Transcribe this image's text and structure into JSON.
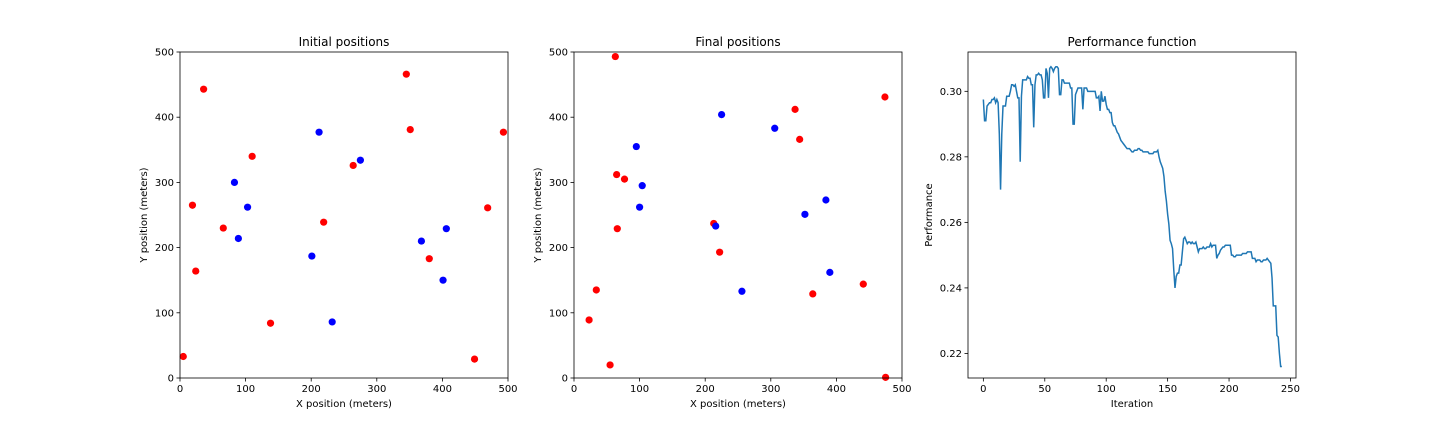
{
  "chart_data": [
    {
      "type": "scatter",
      "title": "Initial positions",
      "xlabel": "X position (meters)",
      "ylabel": "Y position (meters)",
      "xlim": [
        0,
        500
      ],
      "ylim": [
        0,
        500
      ],
      "xticks": [
        0,
        100,
        200,
        300,
        400,
        500
      ],
      "yticks": [
        0,
        100,
        200,
        300,
        400,
        500
      ],
      "grid": false,
      "series": [
        {
          "color": "#ff0000",
          "points": [
            [
              36,
              443
            ],
            [
              345,
              466
            ],
            [
              351,
              381
            ],
            [
              493,
              377
            ],
            [
              110,
              340
            ],
            [
              264,
              326
            ],
            [
              19,
              265
            ],
            [
              66,
              230
            ],
            [
              219,
              239
            ],
            [
              24,
              164
            ],
            [
              380,
              183
            ],
            [
              469,
              261
            ],
            [
              138,
              84
            ],
            [
              5,
              33
            ],
            [
              449,
              29
            ]
          ]
        },
        {
          "color": "#0000ff",
          "points": [
            [
              212,
              377
            ],
            [
              275,
              334
            ],
            [
              83,
              300
            ],
            [
              103,
              262
            ],
            [
              89,
              214
            ],
            [
              201,
              187
            ],
            [
              368,
              210
            ],
            [
              406,
              229
            ],
            [
              401,
              150
            ],
            [
              232,
              86
            ]
          ]
        }
      ]
    },
    {
      "type": "scatter",
      "title": "Final positions",
      "xlabel": "X position (meters)",
      "ylabel": "Y position (meters)",
      "xlim": [
        0,
        500
      ],
      "ylim": [
        0,
        500
      ],
      "xticks": [
        0,
        100,
        200,
        300,
        400,
        500
      ],
      "yticks": [
        0,
        100,
        200,
        300,
        400,
        500
      ],
      "grid": false,
      "series": [
        {
          "color": "#ff0000",
          "points": [
            [
              63,
              493
            ],
            [
              337,
              412
            ],
            [
              474,
              431
            ],
            [
              344,
              366
            ],
            [
              65,
              312
            ],
            [
              77,
              305
            ],
            [
              66,
              229
            ],
            [
              213,
              237
            ],
            [
              222,
              193
            ],
            [
              34,
              135
            ],
            [
              23,
              89
            ],
            [
              364,
              129
            ],
            [
              441,
              144
            ],
            [
              55,
              20
            ],
            [
              475,
              1
            ]
          ]
        },
        {
          "color": "#0000ff",
          "points": [
            [
              225,
              404
            ],
            [
              306,
              383
            ],
            [
              95,
              355
            ],
            [
              104,
              295
            ],
            [
              100,
              262
            ],
            [
              216,
              233
            ],
            [
              352,
              251
            ],
            [
              384,
              273
            ],
            [
              390,
              162
            ],
            [
              256,
              133
            ]
          ]
        }
      ]
    },
    {
      "type": "line",
      "title": "Performance function",
      "xlabel": "Iteration",
      "ylabel": "Performance",
      "xlim": [
        -12.5,
        254.5
      ],
      "ylim": [
        0.2125,
        0.312
      ],
      "xticks": [
        0,
        50,
        100,
        150,
        200,
        250
      ],
      "yticks": [
        0.22,
        0.24,
        0.26,
        0.28,
        0.3
      ],
      "grid": false,
      "series": [
        {
          "color": "#1f77b4",
          "x": [
            0,
            1,
            2,
            3,
            4,
            5,
            6,
            7,
            8,
            9,
            10,
            11,
            12,
            13,
            14,
            15,
            16,
            17,
            18,
            19,
            20,
            21,
            22,
            23,
            24,
            25,
            26,
            27,
            28,
            29,
            30,
            31,
            32,
            33,
            34,
            35,
            36,
            37,
            38,
            39,
            40,
            41,
            42,
            43,
            44,
            45,
            46,
            47,
            48,
            49,
            50,
            51,
            52,
            53,
            54,
            55,
            56,
            57,
            58,
            59,
            60,
            61,
            62,
            63,
            64,
            65,
            66,
            67,
            68,
            69,
            70,
            71,
            72,
            73,
            74,
            75,
            76,
            77,
            78,
            79,
            80,
            81,
            82,
            83,
            84,
            85,
            86,
            87,
            88,
            89,
            90,
            91,
            92,
            93,
            94,
            95,
            96,
            97,
            98,
            99,
            100,
            101,
            102,
            103,
            104,
            105,
            106,
            107,
            108,
            109,
            110,
            111,
            112,
            113,
            114,
            115,
            116,
            117,
            118,
            119,
            120,
            121,
            122,
            123,
            124,
            125,
            126,
            127,
            128,
            129,
            130,
            131,
            132,
            133,
            134,
            135,
            136,
            137,
            138,
            139,
            140,
            141,
            142,
            143,
            144,
            145,
            146,
            147,
            148,
            149,
            150,
            151,
            152,
            153,
            154,
            155,
            156,
            157,
            158,
            159,
            160,
            161,
            162,
            163,
            164,
            165,
            166,
            167,
            168,
            169,
            170,
            171,
            172,
            173,
            174,
            175,
            176,
            177,
            178,
            179,
            180,
            181,
            182,
            183,
            184,
            185,
            186,
            187,
            188,
            189,
            190,
            191,
            192,
            193,
            194,
            195,
            196,
            197,
            198,
            199,
            200,
            201,
            202,
            203,
            204,
            205,
            206,
            207,
            208,
            209,
            210,
            211,
            212,
            213,
            214,
            215,
            216,
            217,
            218,
            219,
            220,
            221,
            222,
            223,
            224,
            225,
            226,
            227,
            228,
            229,
            230,
            231,
            232,
            233,
            234,
            235,
            236,
            237,
            238,
            239,
            240,
            241,
            242,
            243
          ],
          "y": [
            0.2975,
            0.291,
            0.291,
            0.2955,
            0.296,
            0.2965,
            0.2965,
            0.2975,
            0.2975,
            0.298,
            0.2965,
            0.2975,
            0.2965,
            0.287,
            0.27,
            0.287,
            0.2955,
            0.2955,
            0.2955,
            0.2985,
            0.2985,
            0.2985,
            0.3,
            0.302,
            0.302,
            0.3015,
            0.302,
            0.3,
            0.298,
            0.298,
            0.2785,
            0.2985,
            0.3035,
            0.3035,
            0.3035,
            0.3035,
            0.3045,
            0.304,
            0.304,
            0.302,
            0.302,
            0.289,
            0.302,
            0.305,
            0.305,
            0.3055,
            0.305,
            0.305,
            0.3035,
            0.298,
            0.298,
            0.307,
            0.3055,
            0.298,
            0.307,
            0.3075,
            0.307,
            0.306,
            0.307,
            0.3075,
            0.3075,
            0.307,
            0.299,
            0.299,
            0.3035,
            0.3035,
            0.3025,
            0.3025,
            0.3025,
            0.3025,
            0.3025,
            0.301,
            0.301,
            0.29,
            0.29,
            0.299,
            0.3,
            0.301,
            0.301,
            0.301,
            0.301,
            0.2945,
            0.301,
            0.301,
            0.301,
            0.3,
            0.3,
            0.3,
            0.3,
            0.3,
            0.3,
            0.3,
            0.298,
            0.298,
            0.2985,
            0.294,
            0.3,
            0.297,
            0.297,
            0.2985,
            0.296,
            0.2945,
            0.2945,
            0.2935,
            0.2935,
            0.2905,
            0.2895,
            0.2895,
            0.2885,
            0.2875,
            0.287,
            0.286,
            0.285,
            0.2845,
            0.284,
            0.2835,
            0.283,
            0.2825,
            0.2825,
            0.2825,
            0.282,
            0.2815,
            0.2815,
            0.282,
            0.282,
            0.282,
            0.2825,
            0.2825,
            0.282,
            0.282,
            0.2815,
            0.2815,
            0.2815,
            0.2815,
            0.2815,
            0.281,
            0.281,
            0.281,
            0.281,
            0.2815,
            0.2815,
            0.2815,
            0.282,
            0.28,
            0.2785,
            0.2775,
            0.2765,
            0.274,
            0.2695,
            0.2665,
            0.2625,
            0.2595,
            0.2545,
            0.2535,
            0.252,
            0.2455,
            0.24,
            0.2435,
            0.2445,
            0.2445,
            0.247,
            0.247,
            0.251,
            0.255,
            0.2555,
            0.2545,
            0.2535,
            0.254,
            0.254,
            0.2535,
            0.254,
            0.2535,
            0.2535,
            0.254,
            0.2525,
            0.251,
            0.252,
            0.252,
            0.252,
            0.2525,
            0.252,
            0.252,
            0.2525,
            0.2525,
            0.2525,
            0.2535,
            0.2525,
            0.253,
            0.253,
            0.253,
            0.249,
            0.25,
            0.2505,
            0.2515,
            0.252,
            0.2525,
            0.2525,
            0.253,
            0.253,
            0.253,
            0.253,
            0.253,
            0.25,
            0.25,
            0.2495,
            0.2495,
            0.25,
            0.25,
            0.25,
            0.25,
            0.25,
            0.2505,
            0.2505,
            0.2505,
            0.2505,
            0.251,
            0.251,
            0.251,
            0.251,
            0.249,
            0.249,
            0.249,
            0.248,
            0.2485,
            0.2485,
            0.2485,
            0.248,
            0.248,
            0.2485,
            0.2485,
            0.2485,
            0.249,
            0.2485,
            0.248,
            0.2475,
            0.243,
            0.2345,
            0.2345,
            0.2345,
            0.2255,
            0.225,
            0.22,
            0.216,
            0.216
          ]
        }
      ]
    }
  ]
}
